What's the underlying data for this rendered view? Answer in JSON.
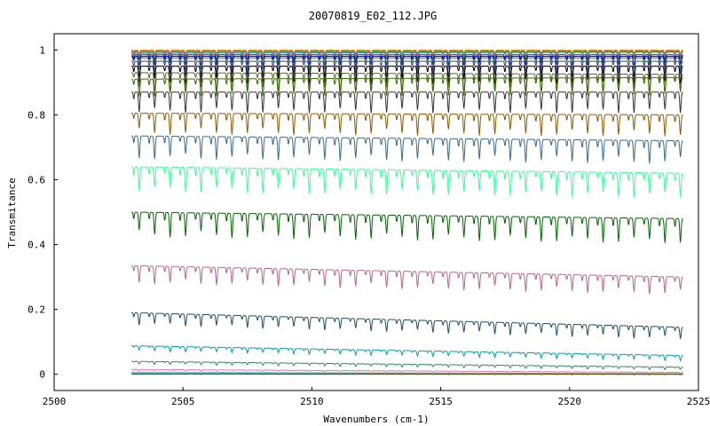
{
  "chart_data": {
    "type": "line",
    "title": "20070819_E02_112.JPG",
    "xlabel": "Wavenumbers (cm-1)",
    "ylabel": "Transmitance",
    "xlim": [
      2500,
      2525
    ],
    "ylim": [
      -0.05,
      1.05
    ],
    "x_ticks": [
      2500,
      2505,
      2510,
      2515,
      2520,
      2525
    ],
    "y_ticks": [
      0,
      0.2,
      0.4,
      0.6,
      0.8,
      1
    ],
    "grid": false,
    "legend": "none",
    "x_start": 2503.0,
    "x_end": 2524.4,
    "line_spacing_cm1": 0.6,
    "series": [
      {
        "color": "#ff8c00",
        "start": 1.0,
        "end": 1.0,
        "depth": 0.01
      },
      {
        "color": "#c0c000",
        "start": 0.998,
        "end": 0.998,
        "depth": 0.012
      },
      {
        "color": "#ff00ff",
        "start": 0.996,
        "end": 0.997,
        "depth": 0.014
      },
      {
        "color": "#00c0c0",
        "start": 0.993,
        "end": 0.995,
        "depth": 0.017
      },
      {
        "color": "#808000",
        "start": 0.99,
        "end": 0.993,
        "depth": 0.02
      },
      {
        "color": "#0000ff",
        "start": 0.985,
        "end": 0.985,
        "depth": 0.03
      },
      {
        "color": "#00008b",
        "start": 0.98,
        "end": 0.98,
        "depth": 0.035
      },
      {
        "color": "#2e8b57",
        "start": 0.975,
        "end": 0.975,
        "depth": 0.04
      },
      {
        "color": "#483d8b",
        "start": 0.965,
        "end": 0.965,
        "depth": 0.045
      },
      {
        "color": "#000000",
        "start": 0.95,
        "end": 0.95,
        "depth": 0.05
      },
      {
        "color": "#556b2f",
        "start": 0.93,
        "end": 0.925,
        "depth": 0.055
      },
      {
        "color": "#3a6b00",
        "start": 0.91,
        "end": 0.915,
        "depth": 0.05
      },
      {
        "color": "#333333",
        "start": 0.87,
        "end": 0.87,
        "depth": 0.06
      },
      {
        "color": "#8b5a00",
        "start": 0.805,
        "end": 0.8,
        "depth": 0.06
      },
      {
        "color": "#3a6a8a",
        "start": 0.735,
        "end": 0.72,
        "depth": 0.065
      },
      {
        "color": "#33ff99",
        "start": 0.64,
        "end": 0.62,
        "depth": 0.07
      },
      {
        "color": "#006400",
        "start": 0.5,
        "end": 0.48,
        "depth": 0.07
      },
      {
        "color": "#b5658a",
        "start": 0.335,
        "end": 0.3,
        "depth": 0.05
      },
      {
        "color": "#1f4e5f",
        "start": 0.19,
        "end": 0.145,
        "depth": 0.035
      },
      {
        "color": "#00a0a0",
        "start": 0.088,
        "end": 0.058,
        "depth": 0.015
      },
      {
        "color": "#2e8b57",
        "start": 0.04,
        "end": 0.022,
        "depth": 0.008
      },
      {
        "color": "#cc77cc",
        "start": 0.015,
        "end": 0.006,
        "depth": 0.004
      },
      {
        "color": "#ff8c00",
        "start": 0.007,
        "end": 0.002,
        "depth": 0.002
      },
      {
        "color": "#00bcd4",
        "start": 0.003,
        "end": 0.001,
        "depth": 0.001
      },
      {
        "color": "#006400",
        "start": 0.001,
        "end": 0.0,
        "depth": 0.001
      }
    ]
  }
}
